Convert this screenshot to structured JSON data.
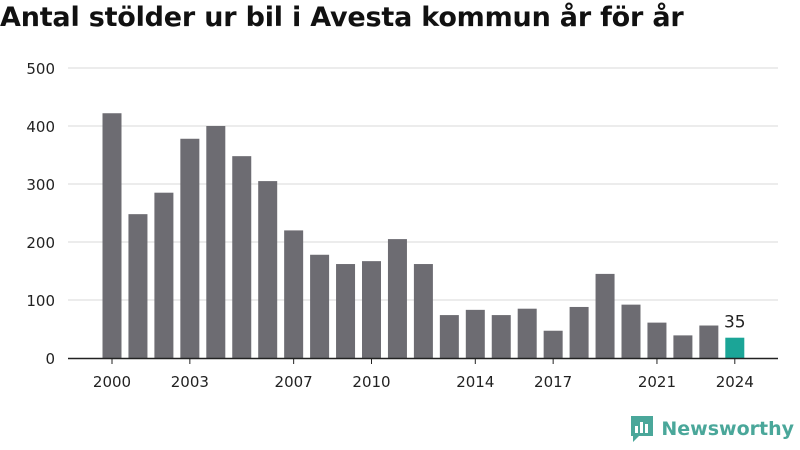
{
  "title": "Antal stölder ur bil i Avesta kommun år för år",
  "brand": {
    "name": "Newsworthy",
    "color": "#4aa79a",
    "icon": "newsworthy-logo-icon"
  },
  "colors": {
    "bar": "#6d6c72",
    "highlight": "#1ba597",
    "grid": "#d9d9d9",
    "axis": "#222222"
  },
  "chart_data": {
    "type": "bar",
    "title": "Antal stölder ur bil i Avesta kommun år för år",
    "xlabel": "",
    "ylabel": "",
    "categories": [
      "2000",
      "2001",
      "2002",
      "2003",
      "2004",
      "2005",
      "2006",
      "2007",
      "2008",
      "2009",
      "2010",
      "2011",
      "2012",
      "2013",
      "2014",
      "2015",
      "2016",
      "2017",
      "2018",
      "2019",
      "2020",
      "2021",
      "2022",
      "2023",
      "2024"
    ],
    "values": [
      422,
      248,
      285,
      378,
      400,
      348,
      305,
      220,
      178,
      162,
      167,
      205,
      162,
      74,
      83,
      74,
      85,
      47,
      88,
      145,
      92,
      61,
      39,
      56,
      35
    ],
    "highlight_index": 24,
    "data_labels": [
      {
        "index": 24,
        "text": "35"
      }
    ],
    "x_tick_labels": [
      "2000",
      "2003",
      "2007",
      "2010",
      "2014",
      "2017",
      "2021",
      "2024"
    ],
    "y_ticks": [
      0,
      100,
      200,
      300,
      400,
      500
    ],
    "ylim": [
      0,
      500
    ],
    "grid": true,
    "legend": "none"
  }
}
